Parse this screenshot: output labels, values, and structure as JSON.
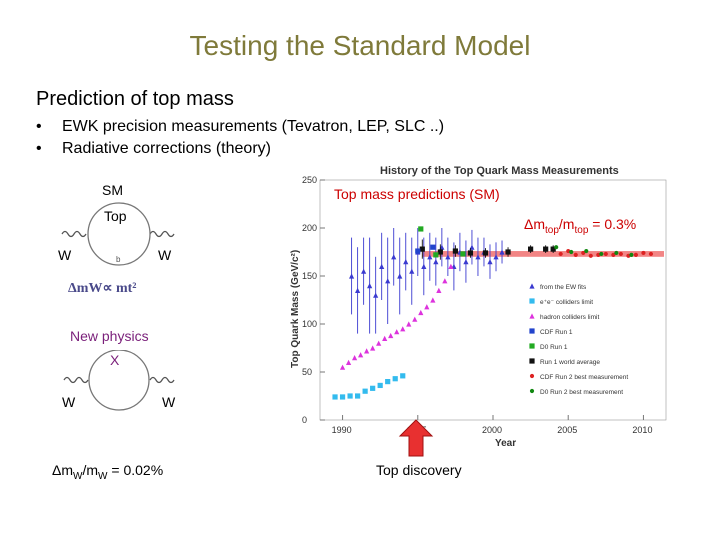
{
  "slide": {
    "title": "Testing the Standard Model",
    "subtitle": "Prediction of top mass",
    "bullets": [
      "EWK precision measurements (Tevatron, LEP, SLC ..)",
      "Radiative corrections (theory)"
    ]
  },
  "diagrams": {
    "sm_label": "SM",
    "sm_top_label": "Top",
    "sm_w_left": "W",
    "sm_w_right": "W",
    "sm_b_label": "b",
    "sm_relation": "ΔmW∝ mt²",
    "np_label": "New physics",
    "np_x_label": "X",
    "np_w_left": "W",
    "np_w_right": "W",
    "mw_precision_prefix": "Δm",
    "mw_precision_sub1": "W",
    "mw_precision_mid": "/m",
    "mw_precision_sub2": "W",
    "mw_precision_suffix": " = 0.02%"
  },
  "annotations": {
    "top_mass_predictions": "Top mass predictions (SM)",
    "mtop_precision_prefix": "Δm",
    "mtop_precision_sub1": "top",
    "mtop_precision_mid": "/m",
    "mtop_precision_sub2": "top",
    "mtop_precision_suffix": " = 0.3%",
    "top_discovery": "Top discovery"
  },
  "colors": {
    "title": "#7f7a3a",
    "accent_red": "#cc0000",
    "band": "#f07070",
    "ew_fits": "#3a3ad0",
    "ee_limit": "#33bbee",
    "hadron_limit": "#dd33dd",
    "cdf_run1": "#2244cc",
    "d0_run1": "#22aa22",
    "world_avg": "#111111",
    "cdf_run2": "#dd2222",
    "d0_run2": "#118811"
  },
  "chart_data": {
    "type": "scatter",
    "title": "History of the Top Quark Mass Measurements",
    "xlabel": "Year",
    "ylabel": "Top Quark Mass (GeV/c²)",
    "xlim": [
      1988.5,
      2011.5
    ],
    "ylim": [
      0,
      250
    ],
    "xticks": [
      1990,
      1995,
      2000,
      2005,
      2010
    ],
    "yticks": [
      0,
      50,
      100,
      150,
      200,
      250
    ],
    "band": {
      "center": 173,
      "half_width": 3
    },
    "legend": [
      "from the EW fits",
      "e⁺e⁻ colliders limit",
      "hadron colliders limit",
      "CDF Run 1",
      "D0 Run 1",
      "Run 1 world average",
      "CDF Run 2 best measurement",
      "D0 Run 2 best measurement"
    ],
    "series": [
      {
        "name": "from the EW fits",
        "x": [
          1990.6,
          1991.0,
          1991.4,
          1991.8,
          1992.2,
          1992.6,
          1993.0,
          1993.4,
          1993.8,
          1994.2,
          1994.6,
          1995.0,
          1995.4,
          1995.8,
          1996.2,
          1996.6,
          1997.0,
          1997.4,
          1997.8,
          1998.2,
          1998.6,
          1999.0,
          1999.4,
          1999.8,
          2000.2,
          2000.6
        ],
        "y": [
          150,
          135,
          155,
          140,
          130,
          160,
          145,
          170,
          150,
          165,
          155,
          175,
          160,
          170,
          165,
          180,
          170,
          160,
          175,
          165,
          180,
          170,
          175,
          165,
          170,
          175
        ],
        "err": [
          40,
          45,
          35,
          50,
          40,
          35,
          45,
          30,
          40,
          30,
          35,
          25,
          30,
          25,
          25,
          20,
          20,
          25,
          20,
          22,
          18,
          20,
          15,
          18,
          15,
          12
        ]
      },
      {
        "name": "e⁺e⁻ colliders limit",
        "x": [
          1989.5,
          1990.0,
          1990.5,
          1991.0,
          1991.5,
          1992.0,
          1992.5,
          1993.0,
          1993.5,
          1994.0
        ],
        "y": [
          24,
          24,
          25,
          25,
          30,
          33,
          36,
          40,
          43,
          46
        ]
      },
      {
        "name": "hadron colliders limit",
        "x": [
          1990.0,
          1990.4,
          1990.8,
          1991.2,
          1991.6,
          1992.0,
          1992.4,
          1992.8,
          1993.2,
          1993.6,
          1994.0,
          1994.4,
          1994.8,
          1995.2,
          1995.6,
          1996.0,
          1996.4,
          1996.8,
          1997.2
        ],
        "y": [
          55,
          60,
          65,
          68,
          72,
          75,
          80,
          85,
          88,
          92,
          95,
          100,
          105,
          112,
          118,
          125,
          135,
          145,
          160
        ]
      },
      {
        "name": "Run 1 world average",
        "x": [
          1995.3,
          1996.5,
          1997.5,
          1998.5,
          1999.5,
          2001.0,
          2002.5,
          2003.5,
          2004.0
        ],
        "y": [
          178,
          175,
          176,
          174,
          174,
          175,
          178,
          178,
          178
        ],
        "err": [
          10,
          8,
          6,
          5,
          5,
          5,
          4,
          4,
          4
        ]
      },
      {
        "name": "CDF Run 1",
        "x": [
          1995.0,
          1996.0
        ],
        "y": [
          176,
          180
        ]
      },
      {
        "name": "D0 Run 1",
        "x": [
          1995.2,
          1996.2,
          1998.0
        ],
        "y": [
          199,
          172,
          173
        ]
      },
      {
        "name": "CDF Run 2 best measurement",
        "x": [
          2004.5,
          2005.0,
          2005.5,
          2006.0,
          2006.5,
          2007.0,
          2007.5,
          2008.0,
          2008.5,
          2009.0,
          2009.5,
          2010.0,
          2010.5
        ],
        "y": [
          173,
          176,
          172,
          174,
          171,
          172,
          173,
          172,
          173,
          171,
          172,
          174,
          173
        ]
      },
      {
        "name": "D0 Run 2 best measurement",
        "x": [
          2004.2,
          2005.2,
          2006.2,
          2007.2,
          2008.2,
          2009.2
        ],
        "y": [
          180,
          175,
          176,
          173,
          174,
          172
        ]
      }
    ]
  }
}
